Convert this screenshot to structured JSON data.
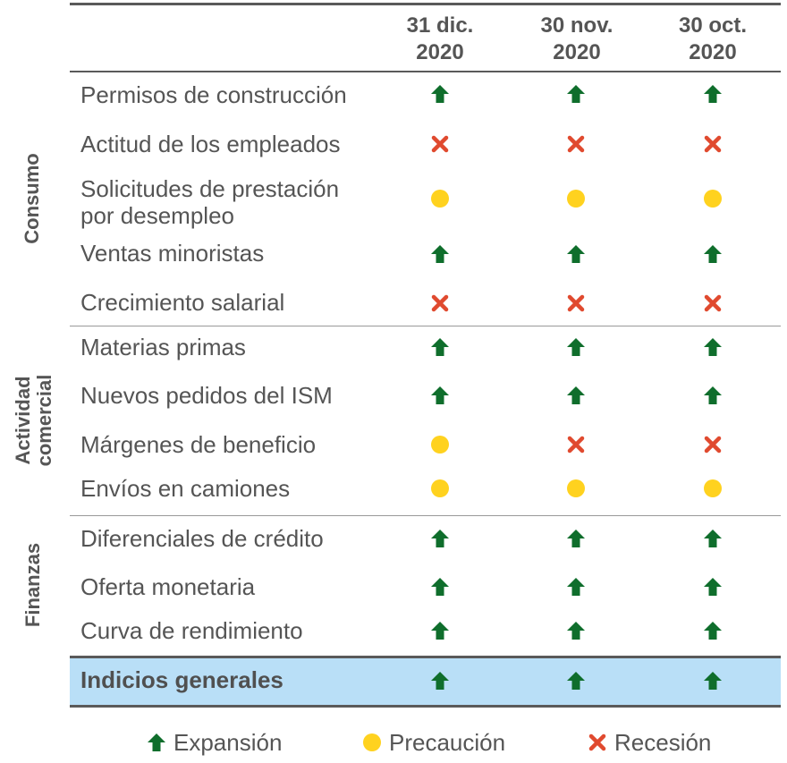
{
  "columns": [
    "31 dic.",
    "2020",
    "30 nov.",
    "2020",
    "30 oct.",
    "2020"
  ],
  "headers": [
    {
      "line1": "31 dic.",
      "line2": "2020"
    },
    {
      "line1": "30 nov.",
      "line2": "2020"
    },
    {
      "line1": "30 oct.",
      "line2": "2020"
    }
  ],
  "groups": {
    "consumo": "Consumo",
    "actividad_1": "Actividad",
    "actividad_2": "comercial",
    "finanzas": "Finanzas"
  },
  "rows": [
    {
      "label1": "Permisos de construcción",
      "label2": "",
      "values": [
        "up",
        "up",
        "up"
      ]
    },
    {
      "label1": "Actitud de los empleados",
      "label2": "",
      "values": [
        "x",
        "x",
        "x"
      ]
    },
    {
      "label1": "Solicitudes de prestación",
      "label2": "por desempleo",
      "values": [
        "dot",
        "dot",
        "dot"
      ]
    },
    {
      "label1": "Ventas minoristas",
      "label2": "",
      "values": [
        "up",
        "up",
        "up"
      ]
    },
    {
      "label1": "Crecimiento salarial",
      "label2": "",
      "values": [
        "x",
        "x",
        "x"
      ]
    },
    {
      "label1": "Materias primas",
      "label2": "",
      "values": [
        "up",
        "up",
        "up"
      ]
    },
    {
      "label1": "Nuevos pedidos del ISM",
      "label2": "",
      "values": [
        "up",
        "up",
        "up"
      ]
    },
    {
      "label1": "Márgenes de beneficio",
      "label2": "",
      "values": [
        "dot",
        "x",
        "x"
      ]
    },
    {
      "label1": "Envíos en camiones",
      "label2": "",
      "values": [
        "dot",
        "dot",
        "dot"
      ]
    },
    {
      "label1": "Diferenciales de crédito",
      "label2": "",
      "values": [
        "up",
        "up",
        "up"
      ]
    },
    {
      "label1": "Oferta monetaria",
      "label2": "",
      "values": [
        "up",
        "up",
        "up"
      ]
    },
    {
      "label1": "Curva de rendimiento",
      "label2": "",
      "values": [
        "up",
        "up",
        "up"
      ]
    }
  ],
  "summary": {
    "label": "Indicios generales",
    "values": [
      "up",
      "up",
      "up"
    ]
  },
  "legend": {
    "expansion": "Expansión",
    "precaucion": "Precaución",
    "recesion": "Recesión"
  },
  "colors": {
    "expansion": "#0f6e2c",
    "precaucion": "#ffd21f",
    "recesion": "#e04a2f",
    "highlight": "#b9dff7",
    "rule": "#555555"
  }
}
